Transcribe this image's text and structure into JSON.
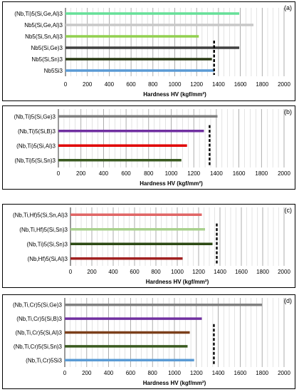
{
  "chart_data": [
    {
      "type": "bar",
      "orientation": "horizontal",
      "panel_label": "(a)",
      "categories": [
        "(Nb,Ti)5(Si,Ge,Al)3",
        "Nb5(Si,Ge,Al)3",
        "Nb5(Si,Sn,Al)3",
        "Nb5(Si,Ge)3",
        "Nb5(Si,Sn)3",
        "Nb5Si3"
      ],
      "values": [
        1590,
        1720,
        1220,
        1590,
        1340,
        1360
      ],
      "colors": [
        "#66e099",
        "#c8c8c8",
        "#92d050",
        "#404040",
        "#2a3a14",
        "#5b9bd5"
      ],
      "reference_line": 1360,
      "xlabel": "Hardness HV (kgf/mm²)",
      "xlim": [
        0,
        2000
      ],
      "xticks": [
        "0",
        "200",
        "400",
        "600",
        "800",
        "1000",
        "1200",
        "1400",
        "1600",
        "1800",
        "2000"
      ],
      "grid": true
    },
    {
      "type": "bar",
      "orientation": "horizontal",
      "panel_label": "(b)",
      "categories": [
        "(Nb,Ti)5(Si,Ge)3",
        "(Nb,Ti)5(Si,B)3",
        "(Nb,Ti)5(Si,Al)3",
        "(Nb,Ti)5(Si,Sn)3"
      ],
      "values": [
        1410,
        1290,
        1140,
        1090
      ],
      "colors": [
        "#808080",
        "#7030a0",
        "#e00000",
        "#3a5a20"
      ],
      "reference_line": 1340,
      "xlabel": "Hardness HV (kgf/mm²)",
      "xlim": [
        0,
        2000
      ],
      "xticks": [
        "0",
        "200",
        "400",
        "600",
        "800",
        "1000",
        "1200",
        "1400",
        "1600",
        "1800",
        "2000"
      ],
      "grid": true
    },
    {
      "type": "bar",
      "orientation": "horizontal",
      "panel_label": "(c)",
      "categories": [
        "(Nb,Ti,Hf)5(Si,Sn,Al)3",
        "(Nb,Ti,Hf)5(Si,Sn)3",
        "(Nb,Ti)5(Si,Sn)3",
        "(Nb,Hf)5(Si,Al)3"
      ],
      "values": [
        1230,
        1260,
        1330,
        1050
      ],
      "colors": [
        "#e06666",
        "#a9d18e",
        "#2d4a14",
        "#a02020"
      ],
      "reference_line": 1370,
      "xlabel": "Hardness HV (kgf/mm²)",
      "xlim": [
        0,
        2000
      ],
      "xticks": [
        "0",
        "200",
        "400",
        "600",
        "800",
        "1000",
        "1200",
        "1400",
        "1600",
        "1800",
        "2000"
      ],
      "grid": true
    },
    {
      "type": "bar",
      "orientation": "horizontal",
      "panel_label": "(d)",
      "categories": [
        "(Nb,Ti,Cr)5(Si,Ge)3",
        "(Nb,Ti,Cr)5(Si,B)3",
        "(Nb,Ti,Cr)5(Si,Al)3",
        "(Nb,Ti,Cr)5(Si,Sn)3",
        "(Nb,Ti,Cr)5Si3"
      ],
      "values": [
        1800,
        1250,
        1140,
        1120,
        1180
      ],
      "colors": [
        "#808080",
        "#7030a0",
        "#7b3f1a",
        "#3a5a20",
        "#5b9bd5"
      ],
      "reference_line": 1360,
      "xlabel": "Hardness HV (kgf/mm²)",
      "xlim": [
        0,
        2000
      ],
      "xticks": [
        "0",
        "200",
        "400",
        "600",
        "800",
        "1000",
        "1200",
        "1400",
        "1600",
        "1800",
        "2000"
      ],
      "grid": true
    }
  ]
}
